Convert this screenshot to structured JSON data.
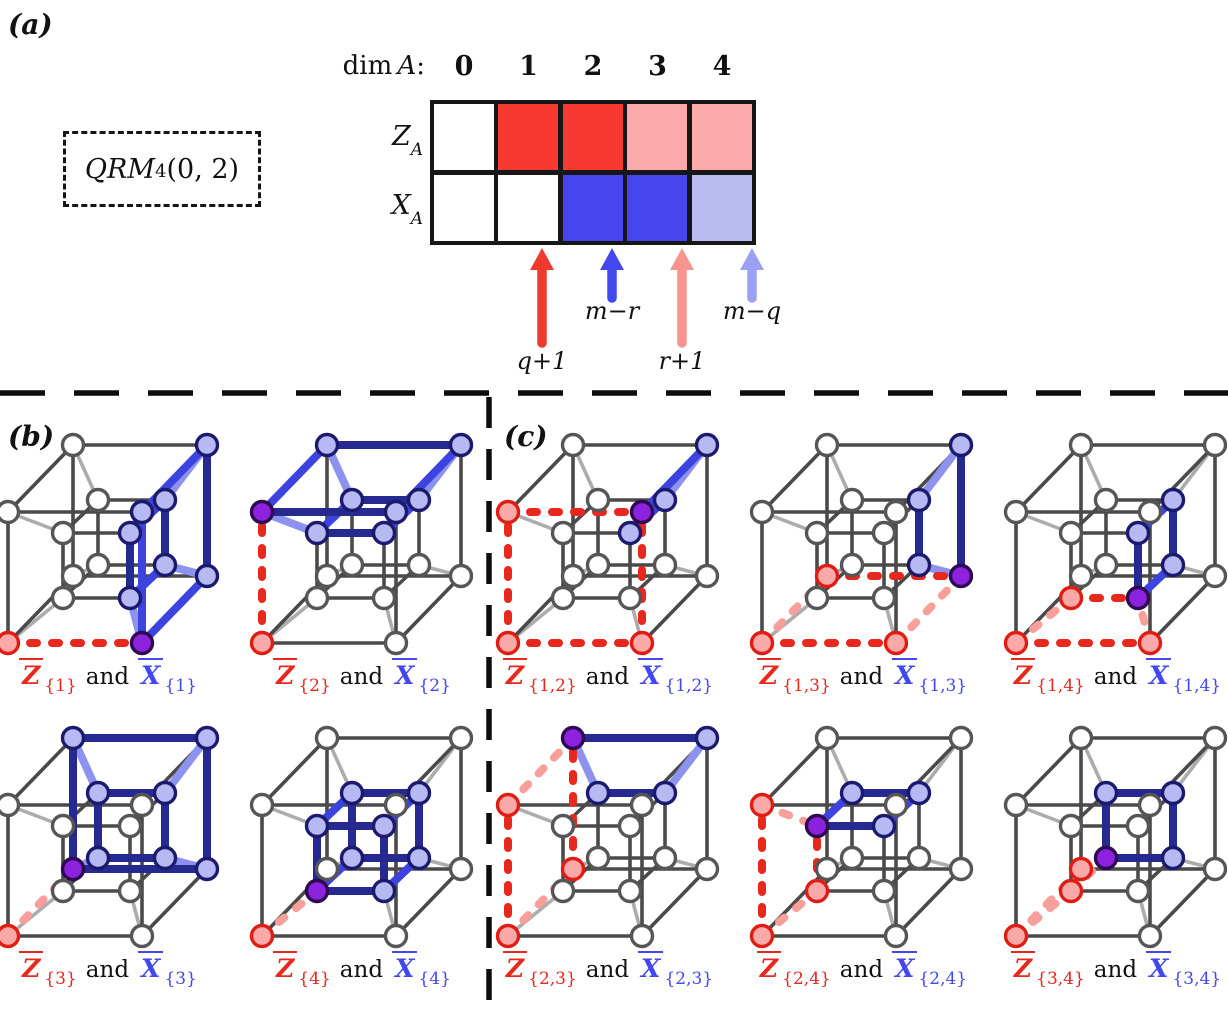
{
  "colors": {
    "bright_red": "#e8271d",
    "salmon": "#f89e9b",
    "royal_blue": "#3d43de",
    "navy": "#262a90",
    "periwinkle": "#8d92ef",
    "lavender": "#b7baf2",
    "purple": "#8c22dd",
    "purple_stroke": "#2d0a52",
    "gray_dark": "#4a4a4a",
    "gray_light": "#acacac",
    "vertex_white_stroke": "#565656",
    "vertex_lavender_stroke": "#1c1a6e",
    "vertex_salmon_fill": "#f9aaa8",
    "vertex_salmon_stroke": "#e01d14",
    "table_red": "#f63a31",
    "table_pink": "#fba9a9",
    "table_blue": "#4646ef",
    "table_lightblue": "#b9bcf1",
    "arrow_red": "#ee3a2f",
    "arrow_blue": "#4348ee",
    "arrow_pink": "#f9938f",
    "arrow_lightblue": "#9aa0f2",
    "separator_black": "#0d0d0d"
  },
  "panel_a": {
    "label": "(a)",
    "code_box": {
      "name": "QRM",
      "subscript": "4",
      "args": "(0, 2)"
    },
    "table": {
      "header": {
        "prefix": "dim",
        "variable": "A",
        "colon": ":"
      },
      "columns": [
        "0",
        "1",
        "2",
        "3",
        "4"
      ],
      "rows": [
        {
          "label": {
            "letter": "Z",
            "subscript": "A"
          },
          "cells": [
            "white",
            "red",
            "red",
            "pink",
            "pink"
          ]
        },
        {
          "label": {
            "letter": "X",
            "subscript": "A"
          },
          "cells": [
            "white",
            "white",
            "blue",
            "blue",
            "lightblue"
          ]
        }
      ]
    },
    "arrows": [
      {
        "color": "red",
        "length": "tall",
        "label": "q+1",
        "label_position": "below"
      },
      {
        "color": "blue",
        "length": "short",
        "label": "m−r",
        "label_position": "mid"
      },
      {
        "color": "pink",
        "length": "tall",
        "label": "r+1",
        "label_position": "below"
      },
      {
        "color": "lightblue",
        "length": "short",
        "label": "m−q",
        "label_position": "mid"
      }
    ]
  },
  "operator_label": {
    "z_letter": "Z",
    "x_letter": "X",
    "conjunction": "and"
  },
  "panel_b": {
    "label": "(b)",
    "operator_pairs": [
      {
        "set": [
          1
        ]
      },
      {
        "set": [
          2
        ]
      },
      {
        "set": [
          3
        ]
      },
      {
        "set": [
          4
        ]
      }
    ]
  },
  "panel_c": {
    "label": "(c)",
    "operator_pairs": [
      {
        "set": [
          1,
          2
        ]
      },
      {
        "set": [
          1,
          3
        ]
      },
      {
        "set": [
          1,
          4
        ]
      },
      {
        "set": [
          2,
          3
        ]
      },
      {
        "set": [
          2,
          4
        ]
      },
      {
        "set": [
          3,
          4
        ]
      }
    ]
  }
}
